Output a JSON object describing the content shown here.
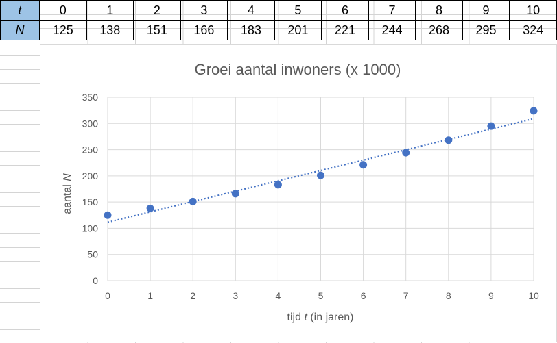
{
  "table": {
    "row_labels": [
      "t",
      "N"
    ],
    "t_values": [
      "0",
      "1",
      "2",
      "3",
      "4",
      "5",
      "6",
      "7",
      "8",
      "9",
      "10"
    ],
    "n_values": [
      "125",
      "138",
      "151",
      "166",
      "183",
      "201",
      "221",
      "244",
      "268",
      "295",
      "324"
    ],
    "header_color": "#9dc3e6"
  },
  "chart_data": {
    "type": "scatter",
    "title": "Groei aantal inwoners (x 1000)",
    "xlabel_prefix": "tijd ",
    "xlabel_var": "t",
    "xlabel_suffix": " (in jaren)",
    "ylabel_prefix": "aantal ",
    "ylabel_var": "N",
    "x": [
      0,
      1,
      2,
      3,
      4,
      5,
      6,
      7,
      8,
      9,
      10
    ],
    "y": [
      125,
      138,
      151,
      166,
      183,
      201,
      221,
      244,
      268,
      295,
      324
    ],
    "xlim": [
      0,
      10
    ],
    "ylim": [
      0,
      350
    ],
    "x_ticks": [
      "0",
      "1",
      "2",
      "3",
      "4",
      "5",
      "6",
      "7",
      "8",
      "9",
      "10"
    ],
    "y_ticks": [
      "0",
      "50",
      "100",
      "150",
      "200",
      "250",
      "300",
      "350"
    ],
    "trendline": {
      "type": "linear-dotted",
      "start": [
        0,
        111.5
      ],
      "end": [
        10,
        309
      ]
    },
    "grid": true,
    "marker_color": "#4472c4",
    "trendline_color": "#4472c4"
  }
}
